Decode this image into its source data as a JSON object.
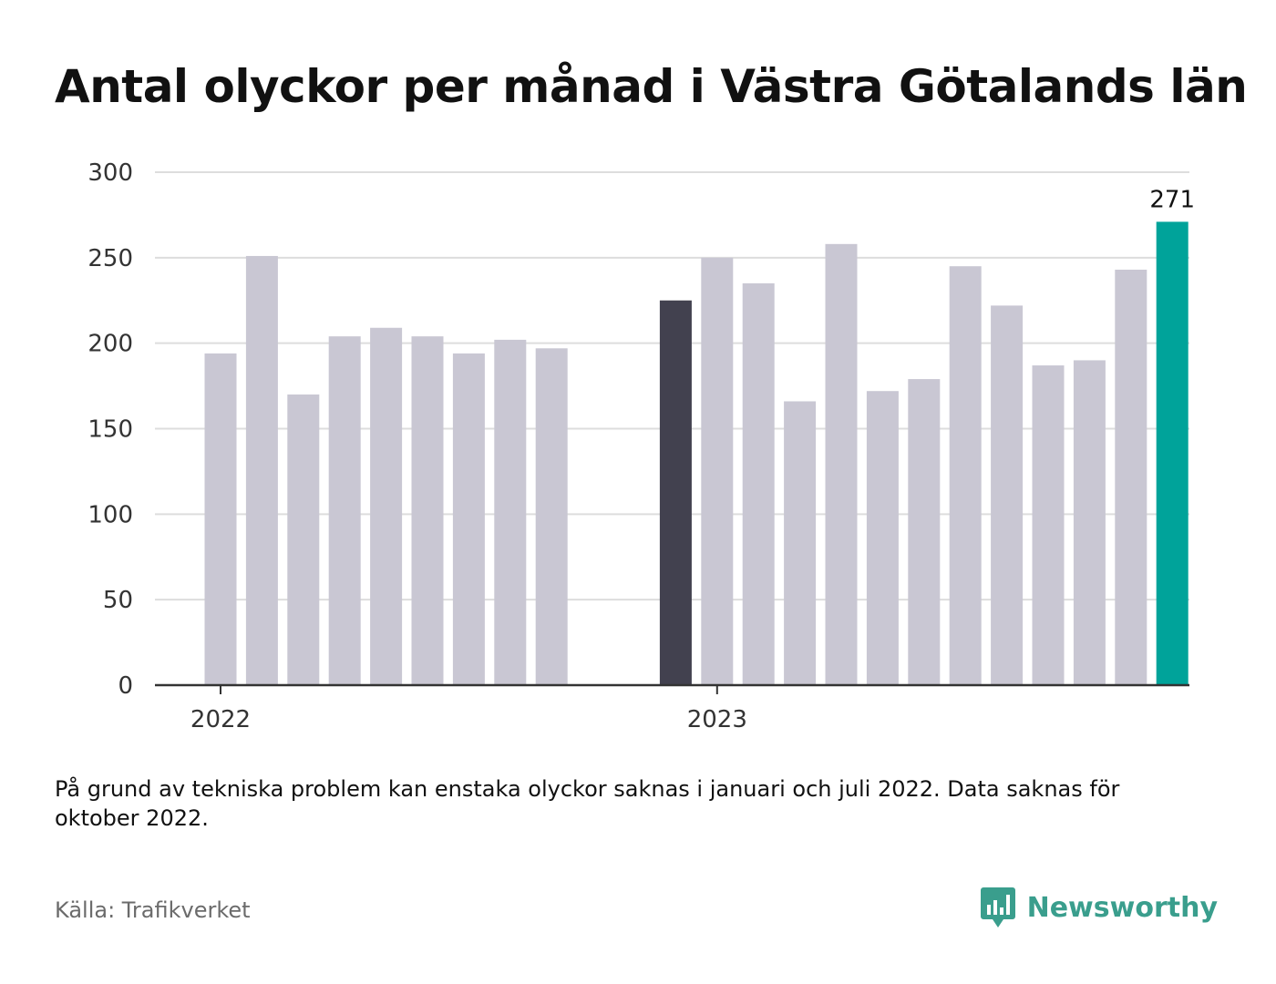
{
  "title": "Antal olyckor per månad i Västra Götalands län",
  "note": "På grund av tekniska problem kan enstaka olyckor saknas i januari och juli 2022. Data saknas för oktober 2022.",
  "source": "Källa: Trafikverket",
  "brand": {
    "name": "Newsworthy",
    "icon": "newsworthy-logo-icon",
    "color": "#3a9e8d"
  },
  "colors": {
    "default_bar": "#c9c7d3",
    "highlight_start": "#42414f",
    "highlight_latest": "#00a39a",
    "grid": "#dddddd",
    "axis": "#333333"
  },
  "chart_data": {
    "type": "bar",
    "x": [
      "2022-01",
      "2022-02",
      "2022-03",
      "2022-04",
      "2022-05",
      "2022-06",
      "2022-07",
      "2022-08",
      "2022-09",
      "2022-10",
      "2022-11",
      "2022-12",
      "2023-01",
      "2023-02",
      "2023-03",
      "2023-04",
      "2023-05",
      "2023-06",
      "2023-07",
      "2023-08",
      "2023-09",
      "2023-10",
      "2023-11",
      "2023-12"
    ],
    "values": [
      194,
      251,
      170,
      204,
      209,
      204,
      194,
      202,
      197,
      null,
      null,
      225,
      250,
      235,
      166,
      258,
      172,
      179,
      245,
      222,
      187,
      190,
      243,
      271
    ],
    "highlight": {
      "2022-12": "highlight_start",
      "2023-12": "highlight_latest"
    },
    "data_labels": [
      {
        "x": "2023-12",
        "text": "271"
      }
    ],
    "x_tick_labels": [
      {
        "x": "2022-01",
        "text": "2022"
      },
      {
        "x": "2023-01",
        "text": "2023"
      }
    ],
    "y_ticks": [
      0,
      50,
      100,
      150,
      200,
      250,
      300
    ],
    "ylim": [
      0,
      300
    ],
    "grid": true,
    "legend": false
  }
}
